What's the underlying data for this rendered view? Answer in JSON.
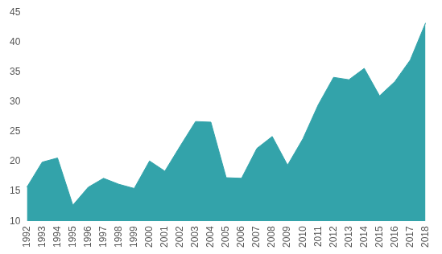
{
  "chart_data": {
    "type": "area",
    "categories": [
      "1992",
      "1993",
      "1994",
      "1995",
      "1996",
      "1997",
      "1998",
      "1999",
      "2000",
      "2001",
      "2002",
      "2003",
      "2004",
      "2005",
      "2006",
      "2007",
      "2008",
      "2009",
      "2010",
      "2011",
      "2012",
      "2013",
      "2014",
      "2015",
      "2016",
      "2017",
      "2018"
    ],
    "values": [
      15.7,
      19.9,
      20.6,
      12.7,
      15.7,
      17.2,
      16.2,
      15.5,
      20.1,
      18.4,
      22.6,
      26.7,
      26.6,
      17.3,
      17.2,
      22.2,
      24.2,
      19.4,
      23.8,
      29.5,
      34.1,
      33.7,
      35.6,
      31.0,
      33.4,
      37.0,
      43.2
    ],
    "color": "#33a3aa",
    "ylim": [
      10,
      45
    ],
    "yticks": [
      10,
      15,
      20,
      25,
      30,
      35,
      40,
      45
    ],
    "grid": false
  }
}
